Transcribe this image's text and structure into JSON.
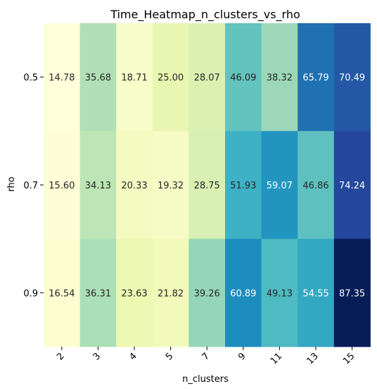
{
  "chart_data": {
    "type": "heatmap",
    "title": "Time_Heatmap_n_clusters_vs_rho",
    "xlabel": "n_clusters",
    "ylabel": "rho",
    "x_categories": [
      "2",
      "3",
      "4",
      "5",
      "7",
      "9",
      "11",
      "13",
      "15"
    ],
    "y_categories": [
      "0.5",
      "0.7",
      "0.9"
    ],
    "values": [
      [
        14.78,
        35.68,
        18.71,
        25.0,
        28.07,
        46.09,
        38.32,
        65.79,
        70.49
      ],
      [
        15.6,
        34.13,
        20.33,
        19.32,
        28.75,
        51.93,
        59.07,
        46.86,
        74.24
      ],
      [
        16.54,
        36.31,
        23.63,
        21.82,
        39.26,
        60.89,
        49.13,
        54.55,
        87.35
      ]
    ],
    "colormap": "YlGnBu",
    "value_range": [
      14.78,
      87.35
    ],
    "annotations": "cell values shown with 2 decimals",
    "legend": "none"
  }
}
